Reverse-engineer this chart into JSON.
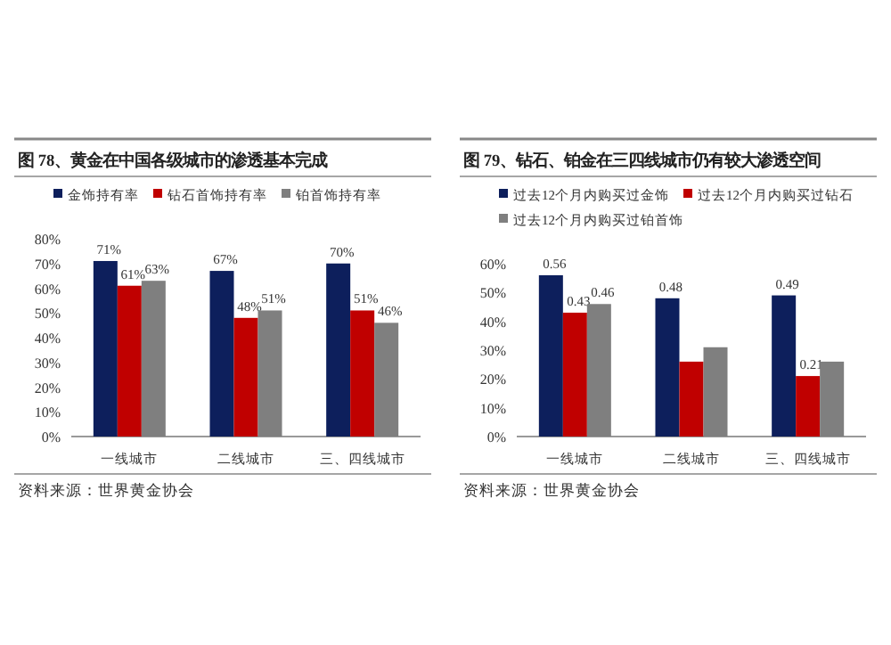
{
  "chart_data": [
    {
      "type": "bar",
      "title": "图 78、黄金在中国各级城市的渗透基本完成",
      "categories": [
        "一线城市",
        "二线城市",
        "三、四线城市"
      ],
      "series": [
        {
          "name": "金饰持有率",
          "color": "#0d1f5c",
          "values": [
            71,
            67,
            70
          ],
          "value_labels": [
            "71%",
            "67%",
            "70%"
          ]
        },
        {
          "name": "钻石首饰持有率",
          "color": "#c00000",
          "values": [
            61,
            48,
            51
          ],
          "value_labels": [
            "61%",
            "48%",
            "51%"
          ]
        },
        {
          "name": "铂首饰持有率",
          "color": "#7f7f7f",
          "values": [
            63,
            51,
            46
          ],
          "value_labels": [
            "63%",
            "51%",
            "46%"
          ]
        }
      ],
      "ylim": [
        0,
        80
      ],
      "yticks": [
        {
          "value": 0,
          "label": "0%"
        },
        {
          "value": 10,
          "label": "10%"
        },
        {
          "value": 20,
          "label": "20%"
        },
        {
          "value": 30,
          "label": "30%"
        },
        {
          "value": 40,
          "label": "40%"
        },
        {
          "value": 50,
          "label": "50%"
        },
        {
          "value": 60,
          "label": "60%"
        },
        {
          "value": 70,
          "label": "70%"
        },
        {
          "value": 80,
          "label": "80%"
        }
      ],
      "legend": "top",
      "grid": false,
      "annotations": [
        "资料来源：世界黄金协会"
      ]
    },
    {
      "type": "bar",
      "title": "图 79、钻石、铂金在三四线城市仍有较大渗透空间",
      "categories": [
        "一线城市",
        "二线城市",
        "三、四线城市"
      ],
      "series": [
        {
          "name": "过去12个月内购买过金饰",
          "color": "#0d1f5c",
          "values": [
            0.56,
            0.48,
            0.49
          ],
          "value_labels": [
            "0.56",
            "0.48",
            "0.49"
          ]
        },
        {
          "name": "过去12个月内购买过钻石",
          "color": "#c00000",
          "values": [
            0.43,
            0.26,
            0.21
          ],
          "value_labels": [
            "0.43",
            null,
            "0.21"
          ]
        },
        {
          "name": "过去12个月内购买过铂首饰",
          "color": "#7f7f7f",
          "values": [
            0.46,
            0.31,
            0.26
          ],
          "value_labels": [
            "0.46",
            null,
            null
          ]
        }
      ],
      "ylim": [
        0,
        0.6
      ],
      "yticks": [
        {
          "value": 0,
          "label": "0%"
        },
        {
          "value": 0.1,
          "label": "10%"
        },
        {
          "value": 0.2,
          "label": "20%"
        },
        {
          "value": 0.3,
          "label": "30%"
        },
        {
          "value": 0.4,
          "label": "40%"
        },
        {
          "value": 0.5,
          "label": "50%"
        },
        {
          "value": 0.6,
          "label": "60%"
        }
      ],
      "legend": "top",
      "grid": false,
      "annotations": [
        "资料来源：世界黄金协会"
      ]
    }
  ]
}
